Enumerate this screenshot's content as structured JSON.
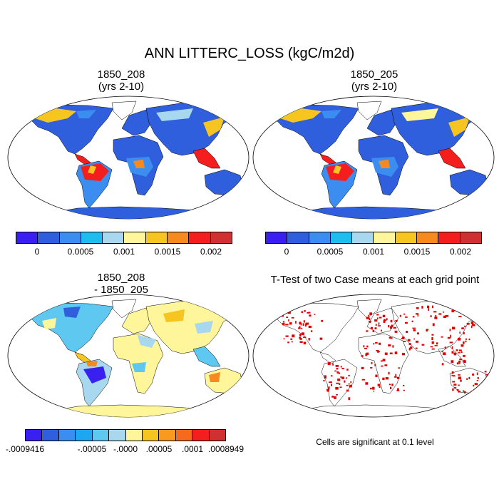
{
  "title": "ANN LITTERC_LOSS (kgC/m2d)",
  "panels": {
    "top_left": {
      "title_line1": "1850_208",
      "title_line2": "(yrs 2-10)"
    },
    "top_right": {
      "title_line1": "1850_205",
      "title_line2": "(yrs 2-10)"
    },
    "bottom_left": {
      "title_line1": "1850_208",
      "title_line2": "- 1850_205"
    },
    "bottom_right": {
      "title_line1": "T-Test of two Case means at each grid point",
      "note": "Cells are significant at 0.1 level"
    }
  },
  "colorbar_main": {
    "colors": [
      "#3a20f0",
      "#2f5fdc",
      "#3b8ef0",
      "#1ebdf0",
      "#a8d8f0",
      "#fff59a",
      "#f7c520",
      "#f78a1e",
      "#f51e1e",
      "#d03030"
    ],
    "labels": [
      "0",
      "0.0005",
      "0.001",
      "0.0015",
      "0.002"
    ]
  },
  "colorbar_diff": {
    "colors": [
      "#3a20f0",
      "#2f5fdc",
      "#3b8ef0",
      "#1ea6f0",
      "#5ec8f0",
      "#a8d8f0",
      "#fff59a",
      "#f7c520",
      "#f79a1e",
      "#f76a1e",
      "#f51e1e",
      "#d03030"
    ],
    "labels": [
      "-.0009416",
      "-.00005",
      "-.0000",
      ".00005",
      ".0001",
      ".0008949"
    ]
  },
  "ttest_color": "#e00000"
}
